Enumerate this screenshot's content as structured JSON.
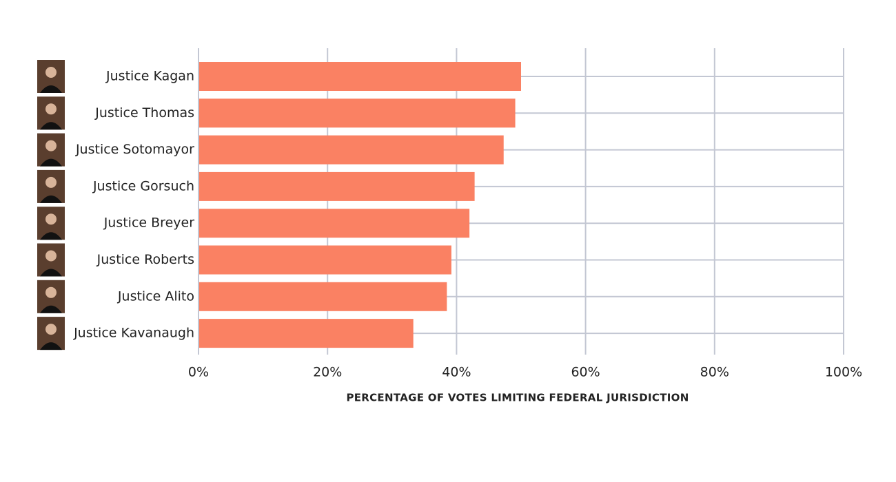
{
  "chart_data": {
    "type": "barh",
    "x_label": "PERCENTAGE OF VOTES LIMITING FEDERAL JURISDICTION",
    "categories": [
      "Justice Kagan",
      "Justice Thomas",
      "Justice Sotomayor",
      "Justice Gorsuch",
      "Justice Breyer",
      "Justice Roberts",
      "Justice Alito",
      "Justice Kavanaugh"
    ],
    "values": [
      50.0,
      49.1,
      47.3,
      42.8,
      42.0,
      39.2,
      38.5,
      33.3
    ],
    "color": "#fa8163",
    "xlim": [
      0,
      100
    ],
    "xticks": [
      {
        "value": 0,
        "label": "0%"
      },
      {
        "value": 20,
        "label": "20%"
      },
      {
        "value": 40,
        "label": "40%"
      },
      {
        "value": 60,
        "label": "60%"
      },
      {
        "value": 80,
        "label": "80%"
      },
      {
        "value": 100,
        "label": "100%"
      }
    ],
    "grid": true
  }
}
